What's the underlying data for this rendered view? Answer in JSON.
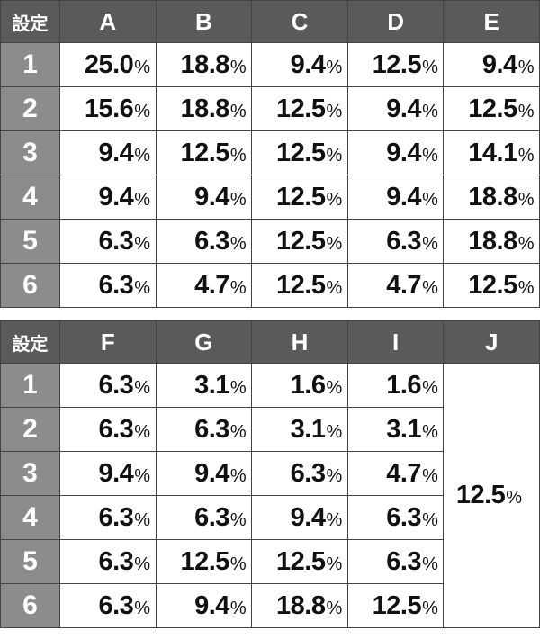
{
  "corner_label": "設定",
  "table1": {
    "columns": [
      "A",
      "B",
      "C",
      "D",
      "E"
    ],
    "rows": [
      {
        "setting": "1",
        "values": [
          "25.0",
          "18.8",
          "9.4",
          "12.5",
          "9.4"
        ]
      },
      {
        "setting": "2",
        "values": [
          "15.6",
          "18.8",
          "12.5",
          "9.4",
          "12.5"
        ]
      },
      {
        "setting": "3",
        "values": [
          "9.4",
          "12.5",
          "12.5",
          "9.4",
          "14.1"
        ]
      },
      {
        "setting": "4",
        "values": [
          "9.4",
          "9.4",
          "12.5",
          "9.4",
          "18.8"
        ]
      },
      {
        "setting": "5",
        "values": [
          "6.3",
          "6.3",
          "12.5",
          "6.3",
          "18.8"
        ]
      },
      {
        "setting": "6",
        "values": [
          "6.3",
          "4.7",
          "12.5",
          "4.7",
          "12.5"
        ]
      }
    ]
  },
  "table2": {
    "columns": [
      "F",
      "G",
      "H",
      "I",
      "J"
    ],
    "rows": [
      {
        "setting": "1",
        "values": [
          "6.3",
          "3.1",
          "1.6",
          "1.6"
        ]
      },
      {
        "setting": "2",
        "values": [
          "6.3",
          "6.3",
          "3.1",
          "3.1"
        ]
      },
      {
        "setting": "3",
        "values": [
          "9.4",
          "9.4",
          "6.3",
          "4.7"
        ]
      },
      {
        "setting": "4",
        "values": [
          "6.3",
          "6.3",
          "9.4",
          "6.3"
        ]
      },
      {
        "setting": "5",
        "values": [
          "6.3",
          "12.5",
          "12.5",
          "6.3"
        ]
      },
      {
        "setting": "6",
        "values": [
          "6.3",
          "9.4",
          "18.8",
          "12.5"
        ]
      }
    ],
    "merged_J": "12.5"
  },
  "unit": "%",
  "colors": {
    "header_bg": "#5a5a5a",
    "setting_bg": "#8c8c8c",
    "border": "#444444"
  }
}
